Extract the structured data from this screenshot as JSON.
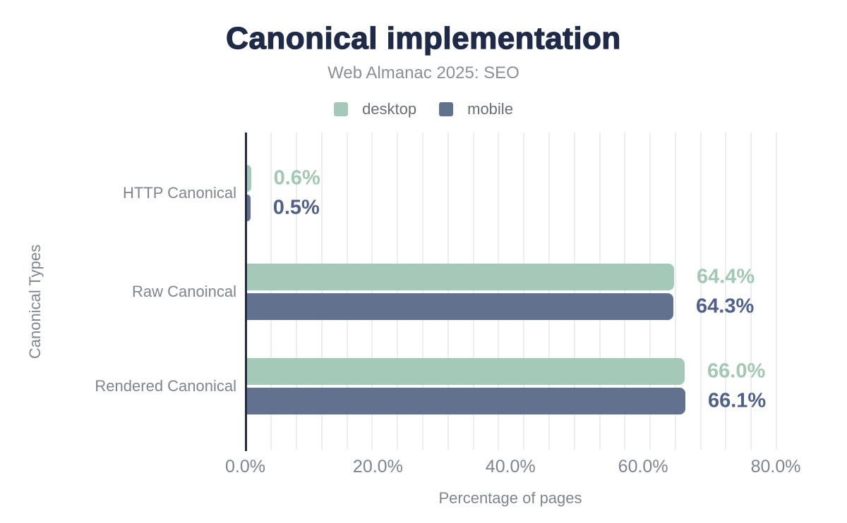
{
  "figure": {
    "title": "Canonical implementation",
    "subtitle": "Web Almanac 2025: SEO"
  },
  "legend": {
    "items": [
      {
        "label": "desktop",
        "color": "#a5c9b8"
      },
      {
        "label": "mobile",
        "color": "#61718e"
      }
    ]
  },
  "chart_data": {
    "type": "bar",
    "orientation": "horizontal",
    "title": "Canonical implementation",
    "subtitle": "Web Almanac 2025: SEO",
    "categories": [
      "HTTP Canonical",
      "Raw Canoincal",
      "Rendered Canonical"
    ],
    "series": [
      {
        "name": "desktop",
        "color": "#a5c9b8",
        "label_color": "#a2c7b3",
        "values": [
          0.6,
          64.4,
          66.0
        ],
        "value_labels": [
          "0.6%",
          "64.4%",
          "66.0%"
        ]
      },
      {
        "name": "mobile",
        "color": "#61718e",
        "label_color": "#4f6189",
        "values": [
          0.5,
          64.3,
          66.1
        ],
        "value_labels": [
          "0.5%",
          "64.3%",
          "66.1%"
        ]
      }
    ],
    "xlabel": "Percentage of pages",
    "ylabel": "Canonical Types",
    "xlim": [
      0,
      80
    ],
    "xticks": [
      {
        "value": 0,
        "label": "0.0%"
      },
      {
        "value": 20,
        "label": "20.0%"
      },
      {
        "value": 40,
        "label": "40.0%"
      },
      {
        "value": 60,
        "label": "60.0%"
      },
      {
        "value": 80,
        "label": "80.0%"
      }
    ],
    "grid": "vertical-minor-on",
    "legend_position": "top"
  },
  "colors": {
    "title": "#1e2a47",
    "axis_line": "#1e2a47",
    "subtitle": "#8a9096",
    "legend_text": "#686e76",
    "axis_text": "#7e858e",
    "gridline": "#ededf0",
    "background": "#ffffff"
  }
}
